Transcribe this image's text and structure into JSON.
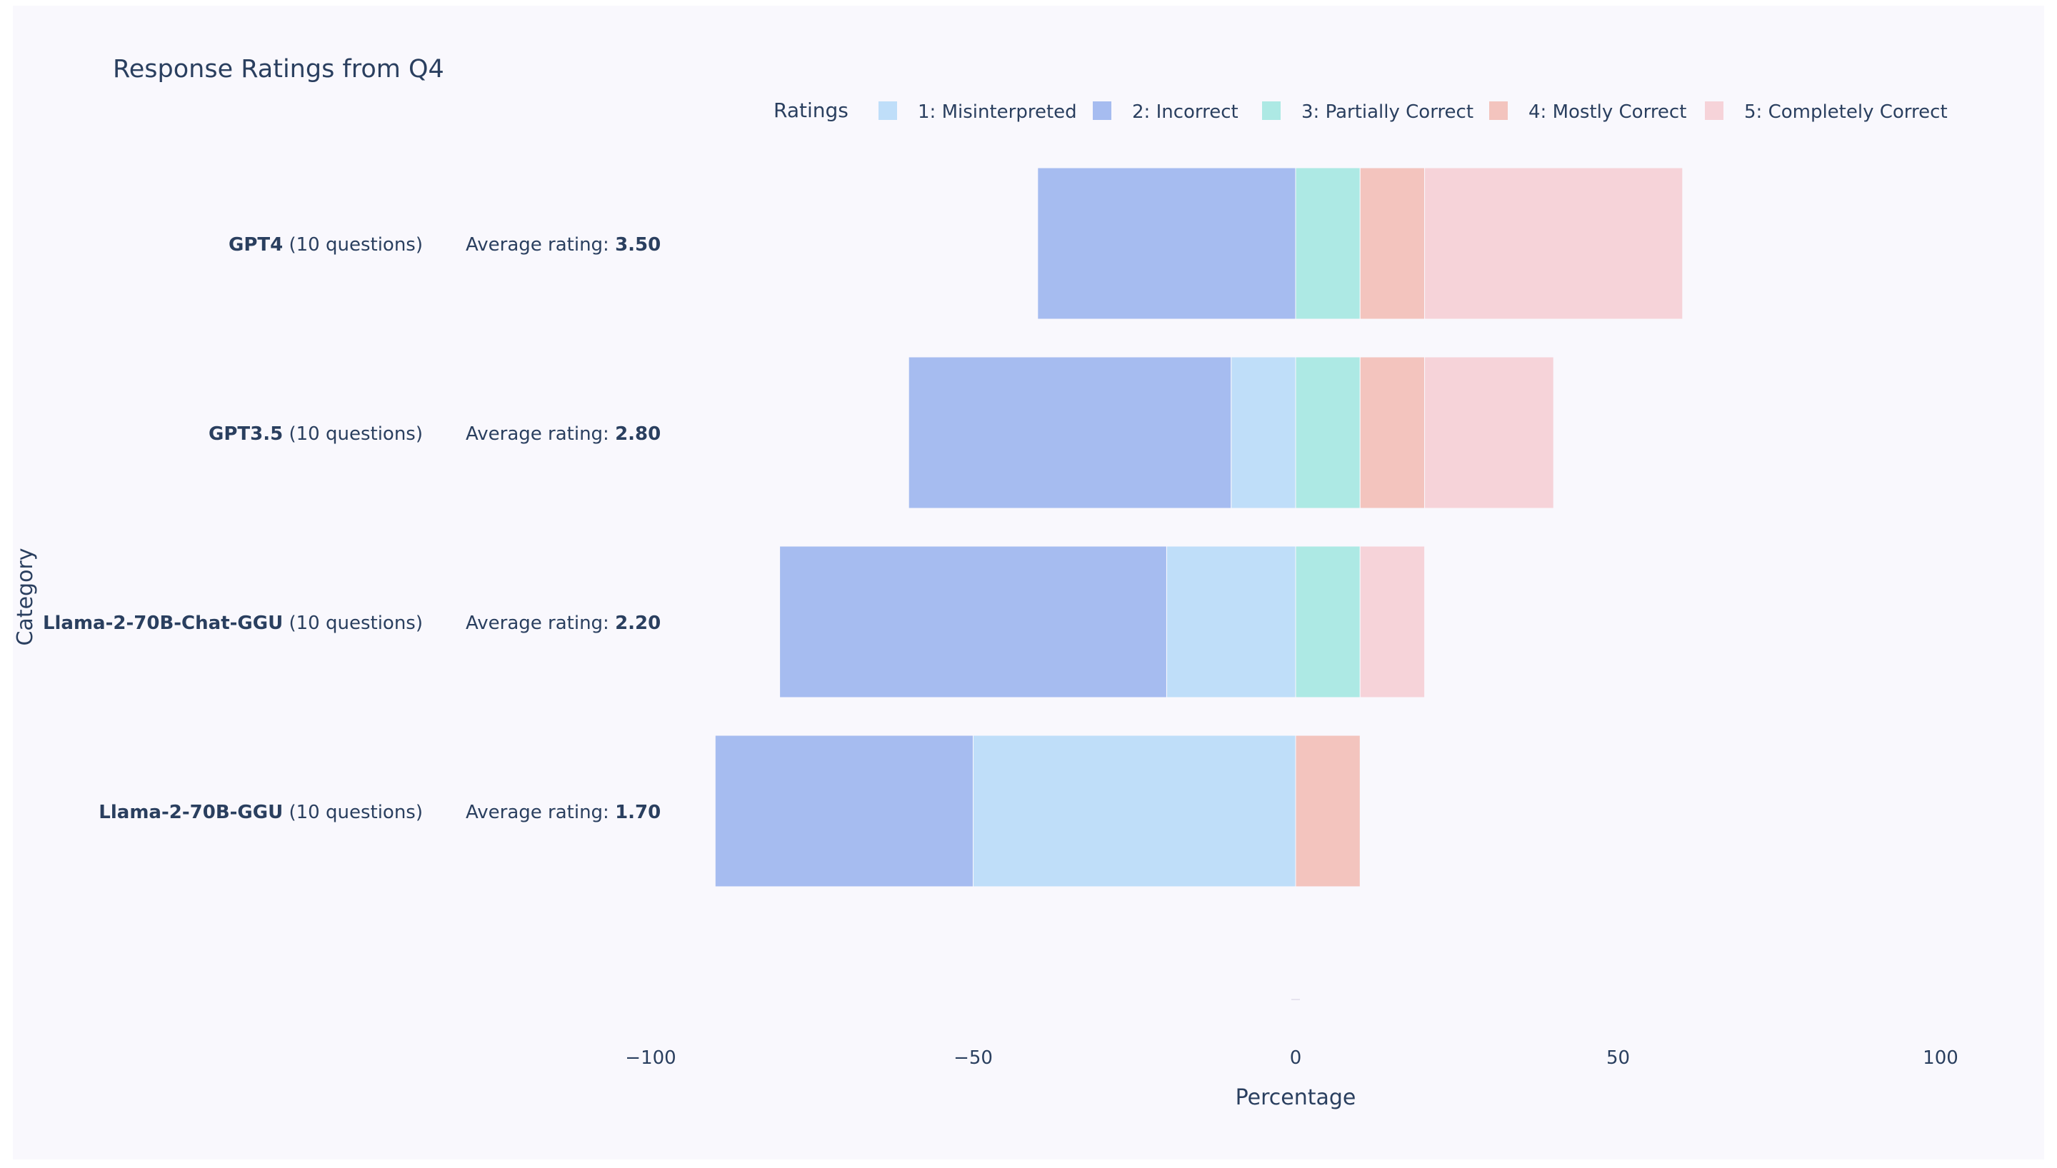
{
  "chart_data": {
    "type": "bar",
    "orientation": "horizontal",
    "barmode": "relative",
    "title": "Response Ratings from Q4",
    "xlabel": "Percentage",
    "ylabel": "Category",
    "xlim": [
      -100,
      100
    ],
    "xticks": [
      -100,
      -50,
      0,
      50,
      100
    ],
    "xtick_labels": [
      "−100",
      "−50",
      "0",
      "50",
      "100"
    ],
    "legend": {
      "title": "Ratings",
      "placement": "top"
    },
    "categories": [
      {
        "name": "GPT4",
        "suffix": " (10 questions)",
        "avg_label": "Average rating: ",
        "avg_value": "3.50"
      },
      {
        "name": "GPT3.5",
        "suffix": " (10 questions)",
        "avg_label": "Average rating: ",
        "avg_value": "2.80"
      },
      {
        "name": "Llama-2-70B-Chat-GGU",
        "suffix": " (10 questions)",
        "avg_label": "Average rating: ",
        "avg_value": "2.20"
      },
      {
        "name": "Llama-2-70B-GGU",
        "suffix": " (10 questions)",
        "avg_label": "Average rating: ",
        "avg_value": "1.70"
      }
    ],
    "series": [
      {
        "name": "1: Misinterpreted",
        "color": "#bfdef9",
        "values": [
          0,
          -10,
          -20,
          -50
        ]
      },
      {
        "name": "2: Incorrect",
        "color": "#a6bcf0",
        "values": [
          -40,
          -50,
          -60,
          -40
        ]
      },
      {
        "name": "3: Partially Correct",
        "color": "#ade9e4",
        "values": [
          10,
          10,
          10,
          0
        ]
      },
      {
        "name": "4: Mostly Correct",
        "color": "#f3c4be",
        "values": [
          10,
          10,
          0,
          10
        ]
      },
      {
        "name": "5: Completely Correct",
        "color": "#f6d3d9",
        "values": [
          40,
          20,
          10,
          0
        ]
      }
    ]
  },
  "colors": {
    "paper": "#ffffff",
    "plot_bg": "#f9f8fd",
    "text": "#2a3f5f"
  }
}
